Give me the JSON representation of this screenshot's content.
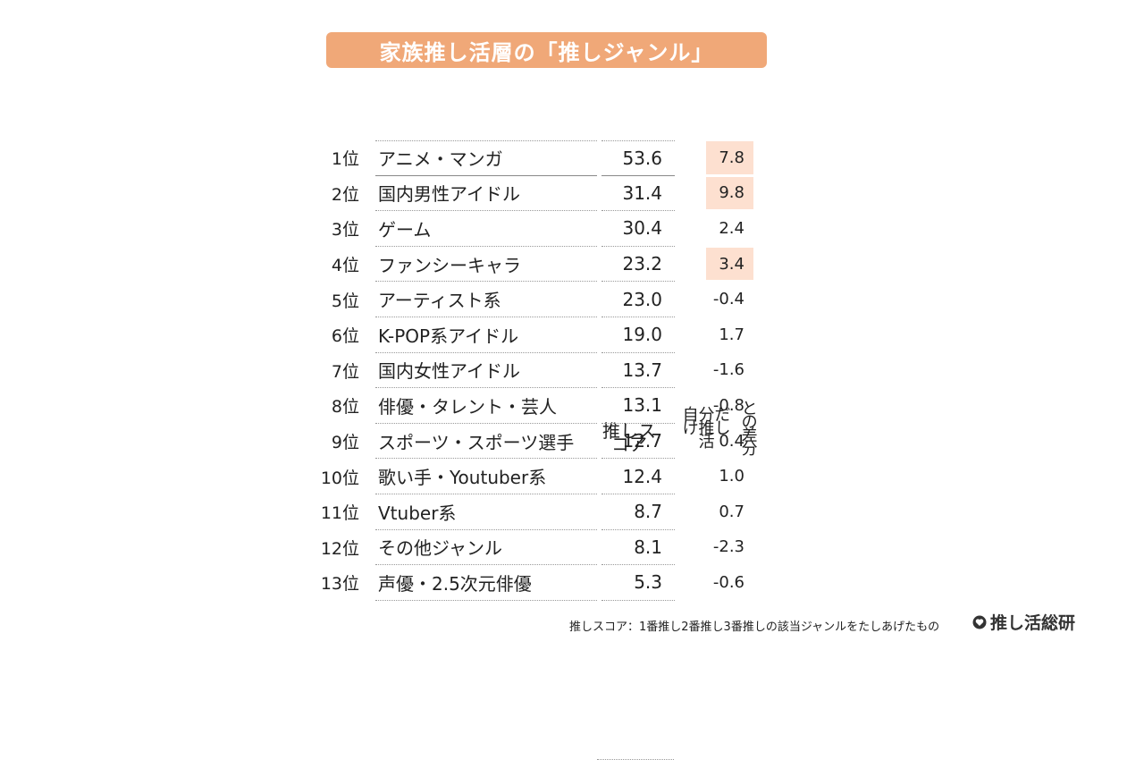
{
  "title": "家族推し活層の「推しジャンル」",
  "columns": {
    "score_header": "推しスコア",
    "diff_header_line1": "自分だけ推し活",
    "diff_header_line2": "との差分"
  },
  "chart_data": {
    "type": "table",
    "title": "家族推し活層の「推しジャンル」",
    "columns": [
      "推しスコア",
      "自分だけ推し活との差分"
    ],
    "rows": [
      {
        "rank": "1位",
        "genre": "アニメ・マンガ",
        "score": "53.6",
        "diff": "7.8",
        "highlight": true
      },
      {
        "rank": "2位",
        "genre": "国内男性アイドル",
        "score": "31.4",
        "diff": "9.8",
        "highlight": true
      },
      {
        "rank": "3位",
        "genre": "ゲーム",
        "score": "30.4",
        "diff": "2.4",
        "highlight": false
      },
      {
        "rank": "4位",
        "genre": "ファンシーキャラ",
        "score": "23.2",
        "diff": "3.4",
        "highlight": true
      },
      {
        "rank": "5位",
        "genre": "アーティスト系",
        "score": "23.0",
        "diff": "-0.4",
        "highlight": false
      },
      {
        "rank": "6位",
        "genre": "K-POP系アイドル",
        "score": "19.0",
        "diff": "1.7",
        "highlight": false
      },
      {
        "rank": "7位",
        "genre": "国内女性アイドル",
        "score": "13.7",
        "diff": "-1.6",
        "highlight": false
      },
      {
        "rank": "8位",
        "genre": "俳優・タレント・芸人",
        "score": "13.1",
        "diff": "-0.8",
        "highlight": false
      },
      {
        "rank": "9位",
        "genre": "スポーツ・スポーツ選手",
        "score": "12.7",
        "diff": "0.4",
        "highlight": false
      },
      {
        "rank": "10位",
        "genre": "歌い手・Youtuber系",
        "score": "12.4",
        "diff": "1.0",
        "highlight": false
      },
      {
        "rank": "11位",
        "genre": "Vtuber系",
        "score": "8.7",
        "diff": "0.7",
        "highlight": false
      },
      {
        "rank": "12位",
        "genre": "その他ジャンル",
        "score": "8.1",
        "diff": "-2.3",
        "highlight": false
      },
      {
        "rank": "13位",
        "genre": "声優・2.5次元俳優",
        "score": "5.3",
        "diff": "-0.6",
        "highlight": false
      }
    ]
  },
  "footnote": "推しスコア：1番推し2番推し3番推しの該当ジャンルをたしあげたもの",
  "logo": {
    "text": "推し活総研",
    "icon": "heart-icon"
  },
  "colors": {
    "title_bg": "#f0a878",
    "highlight": "#fde0d0"
  }
}
